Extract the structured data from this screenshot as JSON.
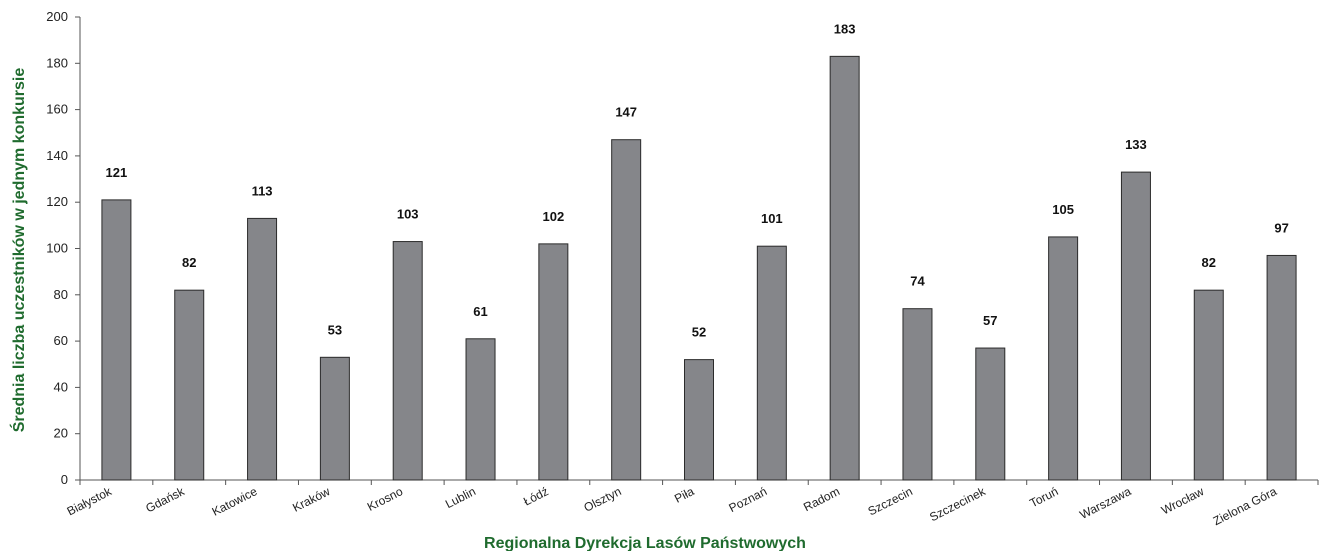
{
  "chart_data": {
    "type": "bar",
    "title": "",
    "xlabel": "Regionalna Dyrekcja Lasów Państwowych",
    "ylabel": "Średnia liczba uczestników w jednym konkursie",
    "ylim": [
      0,
      200
    ],
    "yticks": [
      0,
      20,
      40,
      60,
      80,
      100,
      120,
      140,
      160,
      180,
      200
    ],
    "grid": false,
    "legend": "none",
    "categories": [
      "Białystok",
      "Gdańsk",
      "Katowice",
      "Kraków",
      "Krosno",
      "Lublin",
      "Łódź",
      "Olsztyn",
      "Piła",
      "Poznań",
      "Radom",
      "Szczecin",
      "Szczecinek",
      "Toruń",
      "Warszawa",
      "Wrocław",
      "Zielona Góra"
    ],
    "values": [
      121,
      82,
      113,
      53,
      103,
      61,
      102,
      147,
      52,
      101,
      183,
      74,
      57,
      105,
      133,
      82,
      97
    ],
    "data_labels": [
      "121",
      "82",
      "113",
      "53",
      "103",
      "61",
      "102",
      "147",
      "52",
      "101",
      "183",
      "74",
      "57",
      "105",
      "133",
      "82",
      "97"
    ]
  },
  "colors": {
    "bar_fill": "#85868a",
    "bar_stroke": "#2b2b2b",
    "axis": "#555555",
    "axis_title": "#1f6b2e"
  }
}
